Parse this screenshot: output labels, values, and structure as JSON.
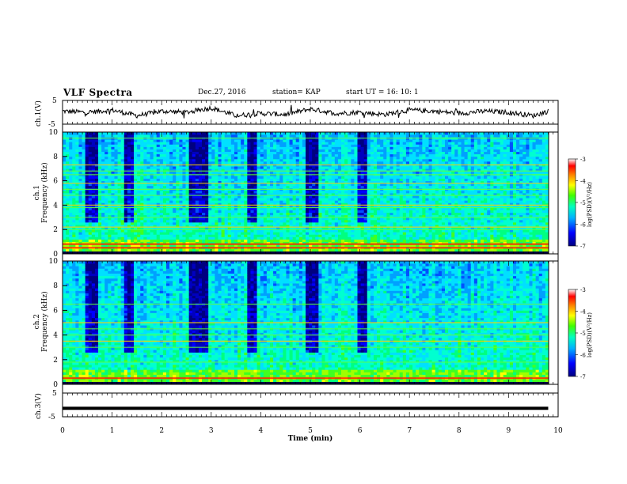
{
  "header": {
    "title": "VLF Spectra",
    "date": "Dec.27, 2016",
    "station": "station= KAP",
    "start": "start  UT =   16: 10: 1"
  },
  "panels": {
    "ch1_waveform": {
      "ylabel": "ch.1(V)",
      "ymin": -5,
      "ymax": 5,
      "yticks": [
        "5",
        "-5"
      ]
    },
    "ch1_spectrogram": {
      "ylabel_line1": "ch.1",
      "ylabel_line2": "Frequency (kHz)",
      "yticks": [
        "0",
        "2",
        "4",
        "6",
        "8",
        "10"
      ],
      "colorbar_label": "log(PSD)(V²/Hz)",
      "colorbar_ticks": [
        "-3",
        "-4",
        "-5",
        "-6",
        "-7"
      ]
    },
    "ch2_spectrogram": {
      "ylabel_line1": "ch.2",
      "ylabel_line2": "Frequency (kHz)",
      "yticks": [
        "0",
        "2",
        "4",
        "6",
        "8",
        "10"
      ],
      "colorbar_label": "log(PSD)(V²/Hz)",
      "colorbar_ticks": [
        "-3",
        "-4",
        "-5",
        "-6",
        "-7"
      ]
    },
    "ch3_waveform": {
      "ylabel": "ch.3(V)",
      "yticks": [
        "5",
        "-5"
      ],
      "level": -1.5
    }
  },
  "xaxis": {
    "label": "Time (min)",
    "ticks": [
      "0",
      "1",
      "2",
      "3",
      "4",
      "5",
      "6",
      "7",
      "8",
      "9",
      "10"
    ]
  },
  "chart_data": [
    {
      "type": "line",
      "title": "ch.1(V)",
      "xlabel": "Time (min)",
      "ylabel": "ch.1(V)",
      "xlim": [
        0,
        10
      ],
      "ylim": [
        -5,
        5
      ],
      "x": [
        0,
        0.5,
        1.0,
        1.5,
        2.0,
        2.5,
        3.0,
        3.5,
        4.0,
        4.5,
        5.0,
        5.5,
        6.0,
        6.5,
        7.0,
        7.5,
        8.0,
        8.5,
        9.0,
        9.5,
        9.8
      ],
      "y": [
        0.5,
        0.0,
        1.0,
        -1.5,
        0.5,
        0.0,
        2.0,
        -1.5,
        -0.5,
        -1.0,
        1.5,
        -0.5,
        0.0,
        -1.0,
        1.0,
        0.5,
        -0.5,
        0.5,
        0.0,
        -1.5,
        0.5
      ]
    },
    {
      "type": "heatmap",
      "title": "ch.1",
      "xlabel": "Time (min)",
      "ylabel": "Frequency (kHz)",
      "xlim": [
        0,
        10
      ],
      "ylim": [
        0,
        10
      ],
      "colorbar_range": [
        -7,
        -3
      ],
      "strong_lines_khz": [
        0.5,
        0.8,
        2.0,
        2.2,
        3.0,
        3.8,
        4.0,
        4.8,
        5.3,
        5.8,
        6.5,
        6.8,
        7.3,
        9.5
      ],
      "quiet_intervals_min": [
        [
          0.4,
          0.7
        ],
        [
          1.2,
          1.4
        ],
        [
          2.5,
          2.9
        ],
        [
          3.7,
          3.9
        ],
        [
          4.9,
          5.1
        ],
        [
          5.9,
          6.1
        ]
      ]
    },
    {
      "type": "heatmap",
      "title": "ch.2",
      "xlabel": "Time (min)",
      "ylabel": "Frequency (kHz)",
      "xlim": [
        0,
        10
      ],
      "ylim": [
        0,
        10
      ],
      "colorbar_range": [
        -7,
        -3
      ],
      "strong_lines_khz": [
        0.5,
        1.8,
        3.0,
        3.5,
        4.0,
        4.5,
        5.0,
        6.5
      ],
      "quiet_intervals_min": [
        [
          0.4,
          0.7
        ],
        [
          1.2,
          1.4
        ],
        [
          2.5,
          2.9
        ],
        [
          3.7,
          3.9
        ],
        [
          4.9,
          5.1
        ],
        [
          5.9,
          6.1
        ]
      ]
    },
    {
      "type": "line",
      "title": "ch.3(V)",
      "xlabel": "Time (min)",
      "ylabel": "ch.3(V)",
      "xlim": [
        0,
        10
      ],
      "ylim": [
        -5,
        5
      ],
      "x": [
        0,
        9.8
      ],
      "y": [
        -1.5,
        -1.5
      ]
    }
  ]
}
